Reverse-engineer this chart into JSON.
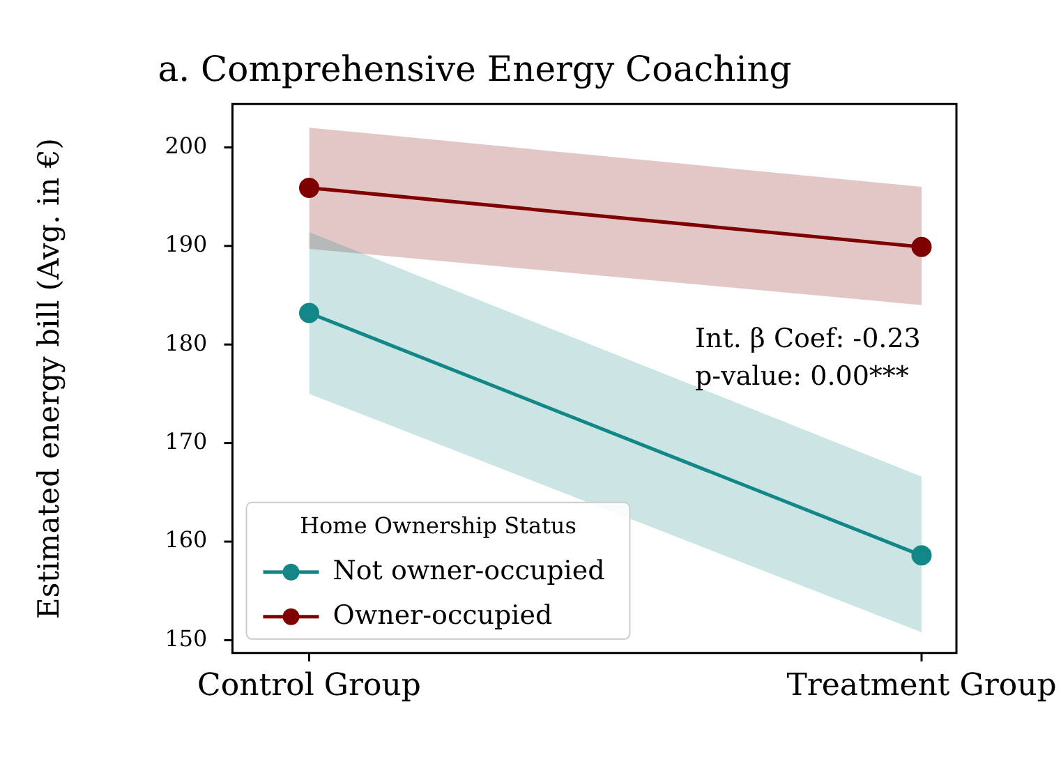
{
  "chart_data": {
    "type": "line",
    "title": "a. Comprehensive Energy Coaching",
    "ylabel": "Estimated energy bill (Avg. in €)",
    "legend_title": "Home Ownership Status",
    "categories": [
      "Control Group",
      "Treatment Group"
    ],
    "series": [
      {
        "name": "Not owner-occupied",
        "color": "#138787",
        "values": [
          183.2,
          158.6
        ],
        "lower": [
          175,
          150.8
        ],
        "upper": [
          191.4,
          166.6
        ]
      },
      {
        "name": "Owner-occupied",
        "color": "#7f0000",
        "values": [
          195.9,
          189.9
        ],
        "lower": [
          189.7,
          184
        ],
        "upper": [
          202,
          196
        ]
      }
    ],
    "ylim": [
      148.7,
      204.4
    ],
    "yticks": [
      150,
      160,
      170,
      180,
      190,
      200
    ],
    "grid": false,
    "legend": "bottom left",
    "marker": "circle",
    "line_style": "solid",
    "annotations": [
      "Int. β Coef: -0.23",
      "p-value: 0.00***"
    ]
  }
}
